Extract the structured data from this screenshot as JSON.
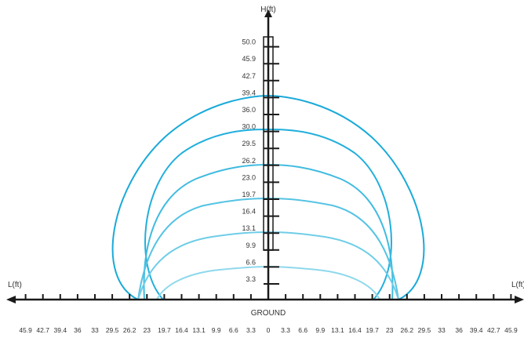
{
  "labels": {
    "h_axis": "H(ft)",
    "l_axis_left": "L(ft)",
    "l_axis_right": "L(ft)",
    "ground": "GROUND"
  },
  "y_ticks": [
    "3.3",
    "6.6",
    "9.9",
    "13.1",
    "16.4",
    "19.7",
    "23.0",
    "26.2",
    "29.5",
    "30.0",
    "36.0",
    "39.4",
    "42.7",
    "45.9",
    "50.0"
  ],
  "x_ticks": [
    "45.9",
    "42.7",
    "39.4",
    "36",
    "33",
    "29.5",
    "26.2",
    "23",
    "19.7",
    "16.4",
    "13.1",
    "9.9",
    "6.6",
    "3.3",
    "0",
    "3.3",
    "6.6",
    "9.9",
    "13.1",
    "16.4",
    "19.7",
    "23",
    "26.2",
    "29.5",
    "33",
    "36",
    "39.4",
    "42.7",
    "45.9"
  ],
  "colors": {
    "axis": "#1a1a1a",
    "curves": [
      "#1aaad9",
      "#22afdc",
      "#3fbbe0",
      "#55c3e3",
      "#6fcde7",
      "#8ed8ec"
    ]
  }
}
